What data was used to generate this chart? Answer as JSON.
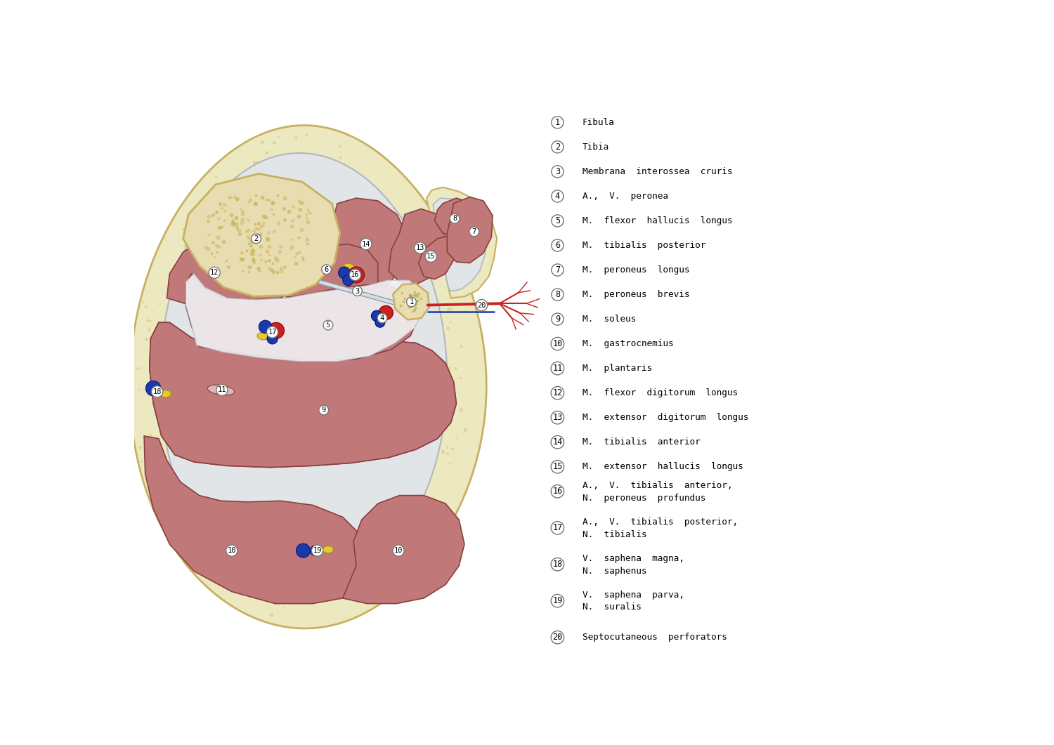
{
  "bg": "#ffffff",
  "mc": "#c07878",
  "me": "#8b4040",
  "bc": "#e8ddb0",
  "be": "#c8b060",
  "fc": "#ece8c0",
  "fe": "#c8b060",
  "wc": "#f0f2f4",
  "we": "#b8bec8",
  "rv": "#cc2020",
  "bv": "#1a3aaa",
  "ny": "#e8c830",
  "legend": [
    [
      "1",
      "Fibula"
    ],
    [
      "2",
      "Tibia"
    ],
    [
      "3",
      "Membrana  interossea  cruris"
    ],
    [
      "4",
      "A.,  V.  peronea"
    ],
    [
      "5",
      "M.  flexor  hallucis  longus"
    ],
    [
      "6",
      "M.  tibialis  posterior"
    ],
    [
      "7",
      "M.  peroneus  longus"
    ],
    [
      "8",
      "M.  peroneus  brevis"
    ],
    [
      "9",
      "M.  soleus"
    ],
    [
      "10",
      "M.  gastrocnemius"
    ],
    [
      "11",
      "M.  plantaris"
    ],
    [
      "12",
      "M.  flexor  digitorum  longus"
    ],
    [
      "13",
      "M.  extensor  digitorum  longus"
    ],
    [
      "14",
      "M.  tibialis  anterior"
    ],
    [
      "15",
      "M.  extensor  hallucis  longus"
    ],
    [
      "16",
      "A.,  V.  tibialis  anterior,\nN.  peroneus  profundus"
    ],
    [
      "17",
      "A.,  V.  tibialis  posterior,\nN.  tibialis"
    ],
    [
      "18",
      "V.  saphena  magna,\nN.  saphenus"
    ],
    [
      "19",
      "V.  saphena  parva,\nN.  suralis"
    ],
    [
      "20",
      "Septocutaneous  perforators"
    ]
  ]
}
